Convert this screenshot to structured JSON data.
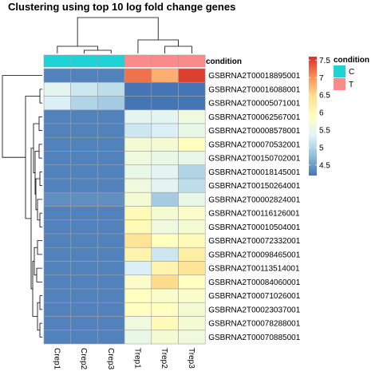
{
  "chart_data": {
    "type": "heatmap",
    "title": "Clustering using top 10 log fold change genes",
    "columns": [
      "Crep1",
      "Crep2",
      "Crep3",
      "Trep1",
      "Trep2",
      "Trep3"
    ],
    "column_condition": [
      "C",
      "C",
      "C",
      "T",
      "T",
      "T"
    ],
    "annotation_label": "condition",
    "rows": [
      "GSBRNA2T00018895001",
      "GSBRNA2T00016088001",
      "GSBRNA2T00005071001",
      "GSBRNA2T00062567001",
      "GSBRNA2T00008578001",
      "GSBRNA2T00070532001",
      "GSBRNA2T00150702001",
      "GSBRNA2T00018145001",
      "GSBRNA2T00150264001",
      "GSBRNA2T00002824001",
      "GSBRNA2T00116126001",
      "GSBRNA2T00010504001",
      "GSBRNA2T00072332001",
      "GSBRNA2T00098465001",
      "GSBRNA2T00113514001",
      "GSBRNA2T00084060001",
      "GSBRNA2T00071026001",
      "GSBRNA2T00023037001",
      "GSBRNA2T00078288001",
      "GSBRNA2T00070885001"
    ],
    "values": [
      [
        4.3,
        4.3,
        4.3,
        7.2,
        6.8,
        7.5
      ],
      [
        5.4,
        5.2,
        5.1,
        4.2,
        4.2,
        4.2
      ],
      [
        5.3,
        5.0,
        4.9,
        4.2,
        4.2,
        4.2
      ],
      [
        4.3,
        4.3,
        4.3,
        5.4,
        5.4,
        5.6
      ],
      [
        4.3,
        4.3,
        4.3,
        5.2,
        5.3,
        5.5
      ],
      [
        4.3,
        4.3,
        4.3,
        5.7,
        5.7,
        5.9
      ],
      [
        4.3,
        4.3,
        4.3,
        5.6,
        5.5,
        5.5
      ],
      [
        4.3,
        4.3,
        4.3,
        5.5,
        5.4,
        5.0
      ],
      [
        4.3,
        4.3,
        4.3,
        5.6,
        5.4,
        5.1
      ],
      [
        4.4,
        4.4,
        4.4,
        5.7,
        4.9,
        5.5
      ],
      [
        4.3,
        4.3,
        4.3,
        6.0,
        5.7,
        5.8
      ],
      [
        4.3,
        4.3,
        4.3,
        6.0,
        5.6,
        5.7
      ],
      [
        4.3,
        4.3,
        4.3,
        6.4,
        5.9,
        6.0
      ],
      [
        4.3,
        4.3,
        4.3,
        6.1,
        5.2,
        6.2
      ],
      [
        4.3,
        4.3,
        4.3,
        5.3,
        6.1,
        6.4
      ],
      [
        4.3,
        4.3,
        4.3,
        5.8,
        6.5,
        5.9
      ],
      [
        4.3,
        4.3,
        4.3,
        5.9,
        5.8,
        5.8
      ],
      [
        4.3,
        4.3,
        4.3,
        5.9,
        5.9,
        5.7
      ],
      [
        4.3,
        4.3,
        4.3,
        5.6,
        6.0,
        5.7
      ],
      [
        4.3,
        4.3,
        4.3,
        5.5,
        5.7,
        5.6
      ]
    ],
    "color_scale": {
      "min": 4.2,
      "max": 7.6,
      "colors": [
        "#4575b4",
        "#91bfdb",
        "#e0f3f8",
        "#ffffbf",
        "#fee090",
        "#fc8d59",
        "#d73027"
      ],
      "ticks": [
        4.5,
        5,
        5.5,
        6,
        6.5,
        7,
        7.5
      ]
    },
    "legend": {
      "title": "condition",
      "entries": [
        {
          "label": "C",
          "color": "#1ed2d6"
        },
        {
          "label": "T",
          "color": "#fa8b8a"
        }
      ]
    }
  }
}
